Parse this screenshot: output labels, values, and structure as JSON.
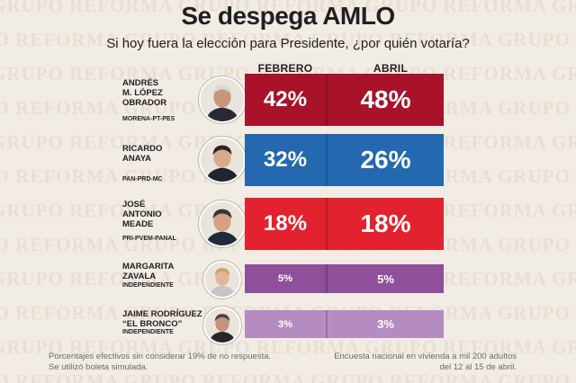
{
  "watermark": {
    "text": "GRUPO REFORMA"
  },
  "title": "Se despega AMLO",
  "subtitle": "Si hoy fuera la elección para Presidente, ¿por quién votaría?",
  "colors": {
    "background": "#f1ece4",
    "amlo": "#a8132a",
    "anaya": "#2469b0",
    "meade": "#e2222e",
    "zavala": "#8e4f9b",
    "bronco": "#b58cc1"
  },
  "chart_data": {
    "type": "table",
    "title": "Se despega AMLO",
    "subtitle": "Si hoy fuera la elección para Presidente, ¿por quién votaría?",
    "columns": [
      "FEBRERO",
      "ABRIL"
    ],
    "series": [
      {
        "name": "FEBRERO",
        "values": [
          42,
          32,
          18,
          5,
          3
        ]
      },
      {
        "name": "ABRIL",
        "values": [
          48,
          26,
          18,
          5,
          3
        ]
      }
    ],
    "rows": [
      {
        "name_lines": [
          "ANDRÉS",
          "M. LÓPEZ",
          "OBRADOR"
        ],
        "party": "MORENA-PT-PES",
        "febrero": "42%",
        "abril": "48%",
        "color_key": "amlo",
        "icon": "amlo-photo-icon"
      },
      {
        "name_lines": [
          "RICARDO",
          "ANAYA"
        ],
        "party": "PAN-PRD-MC",
        "febrero": "32%",
        "abril": "26%",
        "color_key": "anaya",
        "icon": "anaya-photo-icon"
      },
      {
        "name_lines": [
          "JOSÉ",
          "ANTONIO",
          "MEADE"
        ],
        "party": "PRI-PVEM-PANAL",
        "febrero": "18%",
        "abril": "18%",
        "color_key": "meade",
        "icon": "meade-photo-icon"
      },
      {
        "name_lines": [
          "MARGARITA",
          "ZAVALA"
        ],
        "party": "INDEPENDIENTE",
        "febrero": "5%",
        "abril": "5%",
        "color_key": "zavala",
        "icon": "zavala-photo-icon"
      },
      {
        "name_lines": [
          "JAIME RODRÍGUEZ",
          "“EL BRONCO”"
        ],
        "party": "INDEPENDIENTE",
        "febrero": "3%",
        "abril": "3%",
        "color_key": "bronco",
        "icon": "bronco-photo-icon"
      }
    ]
  },
  "footnote_left": [
    "Porcentajes efectivos sin considerar 19% de no respuesta.",
    "Se utilizó boleta simulada."
  ],
  "footnote_right": [
    "Encuesta nacional en vivienda a mil 200 adultos",
    "del 12 al 15 de abril."
  ]
}
